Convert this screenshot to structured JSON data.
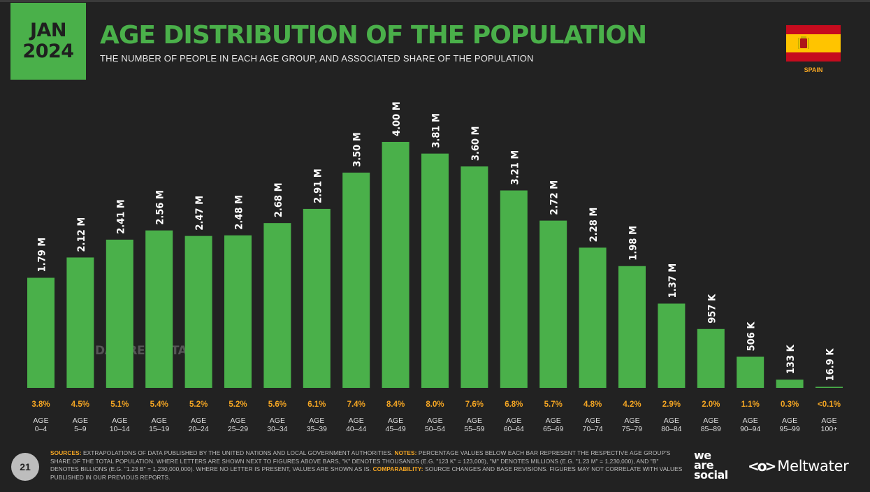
{
  "header": {
    "month": "JAN",
    "year": "2024",
    "title": "AGE DISTRIBUTION OF THE POPULATION",
    "subtitle": "THE NUMBER OF PEOPLE IN EACH AGE GROUP, AND ASSOCIATED SHARE OF THE POPULATION"
  },
  "country": {
    "name": "SPAIN",
    "flag_colors": {
      "red": "#c60b1e",
      "yellow": "#ffc400"
    }
  },
  "watermark": "DATAREPORTAL",
  "colors": {
    "accent": "#4ab04a",
    "share": "#f5a623",
    "background": "#222222"
  },
  "chart_data": {
    "type": "bar",
    "categories": [
      {
        "line1": "AGE",
        "line2": "0–4"
      },
      {
        "line1": "AGE",
        "line2": "5–9"
      },
      {
        "line1": "AGE",
        "line2": "10–14"
      },
      {
        "line1": "AGE",
        "line2": "15–19"
      },
      {
        "line1": "AGE",
        "line2": "20–24"
      },
      {
        "line1": "AGE",
        "line2": "25–29"
      },
      {
        "line1": "AGE",
        "line2": "30–34"
      },
      {
        "line1": "AGE",
        "line2": "35–39"
      },
      {
        "line1": "AGE",
        "line2": "40–44"
      },
      {
        "line1": "AGE",
        "line2": "45–49"
      },
      {
        "line1": "AGE",
        "line2": "50–54"
      },
      {
        "line1": "AGE",
        "line2": "55–59"
      },
      {
        "line1": "AGE",
        "line2": "60–64"
      },
      {
        "line1": "AGE",
        "line2": "65–69"
      },
      {
        "line1": "AGE",
        "line2": "70–74"
      },
      {
        "line1": "AGE",
        "line2": "75–79"
      },
      {
        "line1": "AGE",
        "line2": "80–84"
      },
      {
        "line1": "AGE",
        "line2": "85–89"
      },
      {
        "line1": "AGE",
        "line2": "90–94"
      },
      {
        "line1": "AGE",
        "line2": "95–99"
      },
      {
        "line1": "AGE",
        "line2": "100+"
      }
    ],
    "values": [
      1790000,
      2120000,
      2410000,
      2560000,
      2470000,
      2480000,
      2680000,
      2910000,
      3500000,
      4000000,
      3810000,
      3600000,
      3210000,
      2720000,
      2280000,
      1980000,
      1370000,
      957000,
      506000,
      133000,
      16900
    ],
    "value_labels": [
      "1.79 M",
      "2.12 M",
      "2.41 M",
      "2.56 M",
      "2.47 M",
      "2.48 M",
      "2.68 M",
      "2.91 M",
      "3.50 M",
      "4.00 M",
      "3.81 M",
      "3.60 M",
      "3.21 M",
      "2.72 M",
      "2.28 M",
      "1.98 M",
      "1.37 M",
      "957 K",
      "506 K",
      "133 K",
      "16.9 K"
    ],
    "shares": [
      "3.8%",
      "4.5%",
      "5.1%",
      "5.4%",
      "5.2%",
      "5.2%",
      "5.6%",
      "6.1%",
      "7.4%",
      "8.4%",
      "8.0%",
      "7.6%",
      "6.8%",
      "5.7%",
      "4.8%",
      "4.2%",
      "2.9%",
      "2.0%",
      "1.1%",
      "0.3%",
      "<0.1%"
    ],
    "ylim": [
      0,
      4000000
    ]
  },
  "footer": {
    "sources_label": "SOURCES:",
    "sources_text": " EXTRAPOLATIONS OF DATA PUBLISHED BY THE UNITED NATIONS AND LOCAL GOVERNMENT AUTHORITIES. ",
    "notes_label": "NOTES:",
    "notes_text": " PERCENTAGE VALUES BELOW EACH BAR REPRESENT THE RESPECTIVE AGE GROUP'S SHARE OF THE TOTAL POPULATION. WHERE LETTERS ARE SHOWN NEXT TO FIGURES ABOVE BARS, \"K\" DENOTES THOUSANDS (E.G. \"123 K\" = 123,000), \"M\" DENOTES MILLIONS (E.G. \"1.23 M\" = 1,230,000), AND \"B\" DENOTES BILLIONS (E.G. \"1.23 B\" = 1,230,000,000). WHERE NO LETTER IS PRESENT, VALUES ARE SHOWN AS IS. ",
    "comparability_label": "COMPARABILITY:",
    "comparability_text": " SOURCE CHANGES AND BASE REVISIONS. FIGURES MAY NOT CORRELATE WITH VALUES PUBLISHED IN OUR PREVIOUS REPORTS.",
    "page_number": "21",
    "brand1_lines": [
      "we",
      "are",
      "social"
    ],
    "brand2_icon": "<o>",
    "brand2_name": "Meltwater"
  }
}
